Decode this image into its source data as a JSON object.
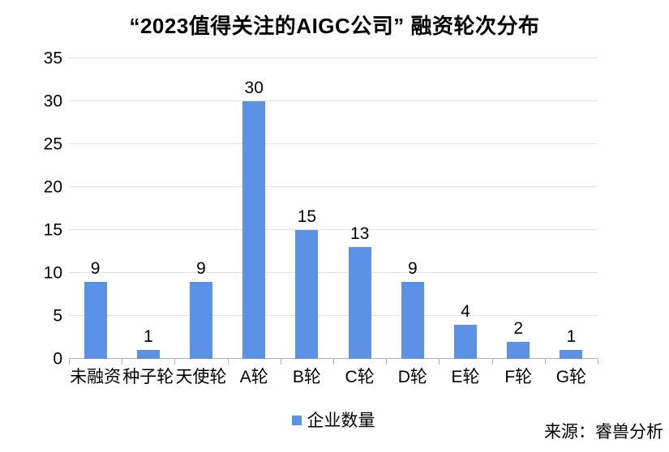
{
  "chart_data": {
    "type": "bar",
    "title": "“2023值得关注的AIGC公司” 融资轮次分布",
    "categories": [
      "未融资",
      "种子轮",
      "天使轮",
      "A轮",
      "B轮",
      "C轮",
      "D轮",
      "E轮",
      "F轮",
      "G轮"
    ],
    "values": [
      9,
      1,
      9,
      30,
      15,
      13,
      9,
      4,
      2,
      1
    ],
    "series_name": "企业数量",
    "xlabel": "",
    "ylabel": "",
    "ylim": [
      0,
      35
    ],
    "yticks": [
      0,
      5,
      10,
      15,
      20,
      25,
      30,
      35
    ],
    "grid": true,
    "legend_position": "bottom",
    "bar_color": "#5B92E5"
  },
  "legend": {
    "label": "企业数量",
    "marker_color": "#5B92E5"
  },
  "source": "来源：睿兽分析",
  "colors": {
    "bar": "#5B92E5",
    "gridline": "#e2e2e2",
    "axis": "#b3b3b3",
    "text": "#000000",
    "background": "#ffffff"
  }
}
